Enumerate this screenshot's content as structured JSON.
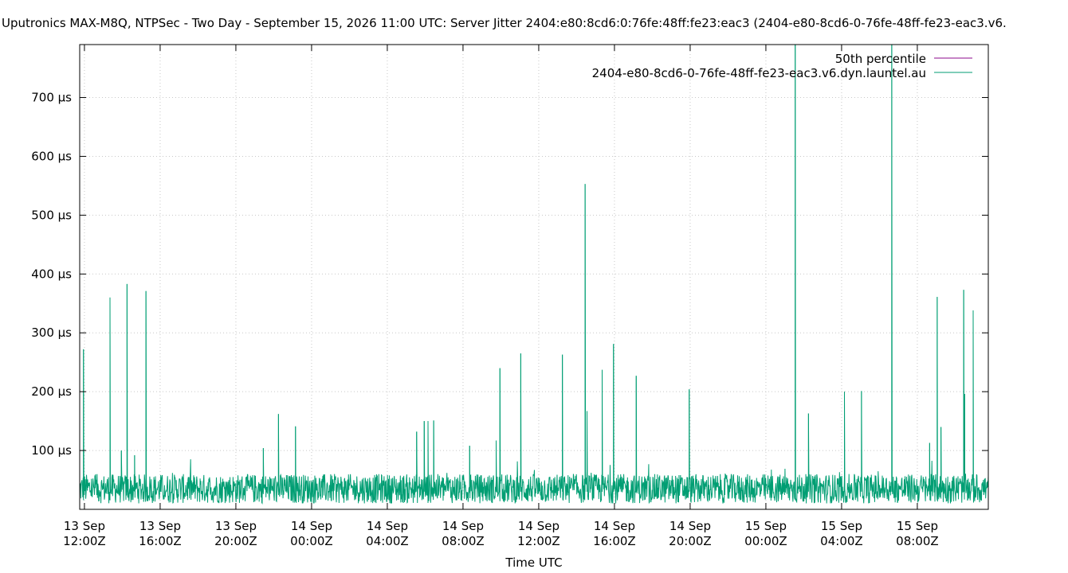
{
  "chart_data": {
    "type": "line",
    "title": "Uputronics MAX-M8Q, NTPSec - Two Day - September 15, 2026 11:00 UTC: Server Jitter 2404:e80:8cd6:0:76fe:48ff:fe23:eac3 (2404-e80-8cd6-0-76fe-48ff-fe23-eac3.v6.",
    "xlabel": "Time UTC",
    "ylabel": "",
    "x_unit": "hours since 13 Sep 11:45Z",
    "xlim": [
      0,
      48
    ],
    "ylim": [
      0,
      790
    ],
    "y_unit": "µs",
    "grid": true,
    "legend_position": "top-right",
    "x_ticks": [
      {
        "x": 0.25,
        "line1": "13 Sep",
        "line2": "12:00Z"
      },
      {
        "x": 4.25,
        "line1": "13 Sep",
        "line2": "16:00Z"
      },
      {
        "x": 8.25,
        "line1": "13 Sep",
        "line2": "20:00Z"
      },
      {
        "x": 12.25,
        "line1": "14 Sep",
        "line2": "00:00Z"
      },
      {
        "x": 16.25,
        "line1": "14 Sep",
        "line2": "04:00Z"
      },
      {
        "x": 20.25,
        "line1": "14 Sep",
        "line2": "08:00Z"
      },
      {
        "x": 24.25,
        "line1": "14 Sep",
        "line2": "12:00Z"
      },
      {
        "x": 28.25,
        "line1": "14 Sep",
        "line2": "16:00Z"
      },
      {
        "x": 32.25,
        "line1": "14 Sep",
        "line2": "20:00Z"
      },
      {
        "x": 36.25,
        "line1": "15 Sep",
        "line2": "00:00Z"
      },
      {
        "x": 40.25,
        "line1": "15 Sep",
        "line2": "04:00Z"
      },
      {
        "x": 44.25,
        "line1": "15 Sep",
        "line2": "08:00Z"
      }
    ],
    "y_ticks": [
      {
        "v": 100,
        "label": "100 µs"
      },
      {
        "v": 200,
        "label": "200 µs"
      },
      {
        "v": 300,
        "label": "300 µs"
      },
      {
        "v": 400,
        "label": "400 µs"
      },
      {
        "v": 500,
        "label": "500 µs"
      },
      {
        "v": 600,
        "label": "600 µs"
      },
      {
        "v": 700,
        "label": "700 µs"
      }
    ],
    "series": [
      {
        "name": "50th percentile",
        "color": "#8b0a8b",
        "values": []
      },
      {
        "name": "2404-e80-8cd6-0-76fe-48ff-fe23-eac3.v6.dyn.launtel.au",
        "color": "#009e73",
        "baseline": {
          "typical_min": 10,
          "typical_max": 60,
          "typical_mean": 32
        },
        "spikes": [
          {
            "x": 0.2,
            "y": 272
          },
          {
            "x": 1.6,
            "y": 360
          },
          {
            "x": 2.2,
            "y": 100
          },
          {
            "x": 2.5,
            "y": 383
          },
          {
            "x": 2.9,
            "y": 92
          },
          {
            "x": 3.5,
            "y": 371
          },
          {
            "x": 10.5,
            "y": 162
          },
          {
            "x": 11.4,
            "y": 141
          },
          {
            "x": 9.7,
            "y": 104
          },
          {
            "x": 17.8,
            "y": 132
          },
          {
            "x": 18.2,
            "y": 150
          },
          {
            "x": 18.4,
            "y": 150
          },
          {
            "x": 18.7,
            "y": 151
          },
          {
            "x": 20.6,
            "y": 108
          },
          {
            "x": 22.0,
            "y": 117
          },
          {
            "x": 22.2,
            "y": 240
          },
          {
            "x": 23.3,
            "y": 265
          },
          {
            "x": 25.5,
            "y": 263
          },
          {
            "x": 26.7,
            "y": 553
          },
          {
            "x": 26.8,
            "y": 167
          },
          {
            "x": 27.6,
            "y": 237
          },
          {
            "x": 28.2,
            "y": 281
          },
          {
            "x": 29.4,
            "y": 227
          },
          {
            "x": 32.2,
            "y": 204
          },
          {
            "x": 37.8,
            "y": 790
          },
          {
            "x": 38.5,
            "y": 163
          },
          {
            "x": 40.4,
            "y": 200
          },
          {
            "x": 41.3,
            "y": 201
          },
          {
            "x": 42.9,
            "y": 790
          },
          {
            "x": 45.3,
            "y": 361
          },
          {
            "x": 44.9,
            "y": 113
          },
          {
            "x": 45.5,
            "y": 140
          },
          {
            "x": 46.7,
            "y": 373
          },
          {
            "x": 46.75,
            "y": 196
          },
          {
            "x": 47.2,
            "y": 338
          }
        ]
      }
    ]
  }
}
